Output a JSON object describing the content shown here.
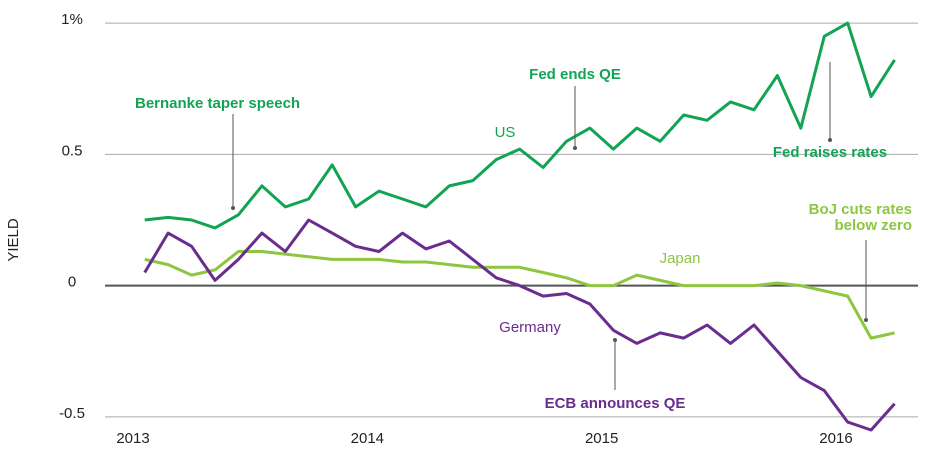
{
  "chart_data": {
    "type": "line",
    "y_label": "YIELD",
    "x": [
      2013.05,
      2013.15,
      2013.25,
      2013.35,
      2013.45,
      2013.55,
      2013.65,
      2013.75,
      2013.85,
      2013.95,
      2014.05,
      2014.15,
      2014.25,
      2014.35,
      2014.45,
      2014.55,
      2014.65,
      2014.75,
      2014.85,
      2014.95,
      2015.05,
      2015.15,
      2015.25,
      2015.35,
      2015.45,
      2015.55,
      2015.65,
      2015.75,
      2015.85,
      2015.95,
      2016.05,
      2016.15,
      2016.25
    ],
    "series": [
      {
        "name": "US",
        "color": "#12a454",
        "values": [
          0.25,
          0.26,
          0.25,
          0.22,
          0.27,
          0.38,
          0.3,
          0.33,
          0.46,
          0.3,
          0.36,
          0.33,
          0.3,
          0.38,
          0.4,
          0.48,
          0.52,
          0.45,
          0.55,
          0.6,
          0.52,
          0.6,
          0.55,
          0.65,
          0.63,
          0.7,
          0.67,
          0.8,
          0.6,
          0.95,
          1.0,
          0.72,
          0.86
        ]
      },
      {
        "name": "Japan",
        "color": "#8dc63f",
        "values": [
          0.1,
          0.08,
          0.04,
          0.06,
          0.13,
          0.13,
          0.12,
          0.11,
          0.1,
          0.1,
          0.1,
          0.09,
          0.09,
          0.08,
          0.07,
          0.07,
          0.07,
          0.05,
          0.03,
          0.0,
          0.0,
          0.04,
          0.02,
          0.0,
          0.0,
          0.0,
          0.0,
          0.01,
          0.0,
          -0.02,
          -0.04,
          -0.2,
          -0.18
        ]
      },
      {
        "name": "Germany",
        "color": "#6a2c8e",
        "values": [
          0.05,
          0.2,
          0.15,
          0.02,
          0.1,
          0.2,
          0.13,
          0.25,
          0.2,
          0.15,
          0.13,
          0.2,
          0.14,
          0.17,
          0.1,
          0.03,
          0.0,
          -0.04,
          -0.03,
          -0.07,
          -0.17,
          -0.22,
          -0.18,
          -0.2,
          -0.15,
          -0.22,
          -0.15,
          -0.25,
          -0.35,
          -0.4,
          -0.52,
          -0.55,
          -0.45
        ]
      }
    ],
    "annotations": [
      "Bernanke taper speech",
      "Fed ends QE",
      "Fed raises rates",
      "BoJ cuts rates",
      "below zero",
      "ECB announces QE"
    ],
    "xlim": [
      2013,
      2016.35
    ],
    "xticks": [
      2013,
      2014,
      2015,
      2016
    ],
    "ylim": [
      -0.55,
      1.05
    ],
    "yticks": [
      -0.5,
      0,
      0.5,
      {
        "value": 1,
        "label": "1%"
      }
    ],
    "grid": true
  }
}
